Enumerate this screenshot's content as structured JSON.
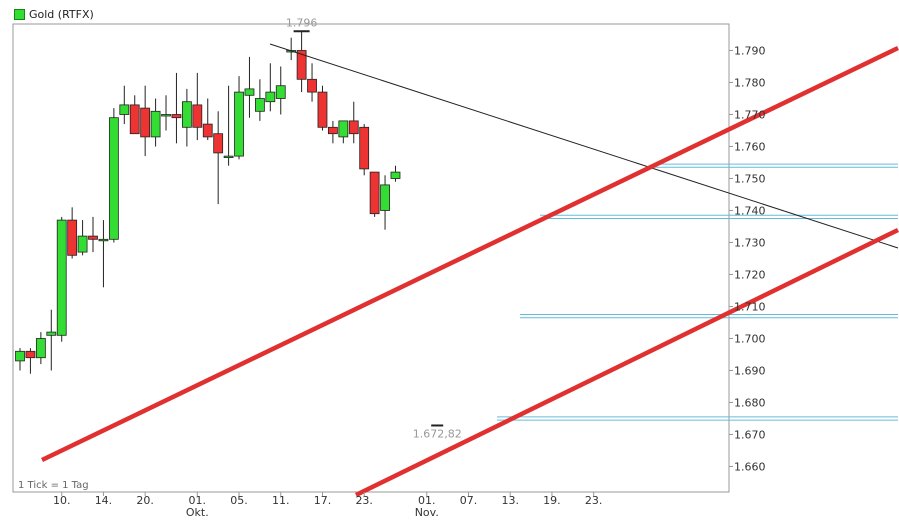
{
  "legend": {
    "label": "Gold (RTFX)",
    "color": "#33dd33"
  },
  "footnote": "1 Tick = 1 Tag",
  "chart_data": {
    "type": "candlestick",
    "title": "",
    "xlabel": "",
    "ylabel": "",
    "ylim": [
      1.655,
      1.803
    ],
    "yticks": [
      "1.660",
      "1.670",
      "1.680",
      "1.690",
      "1.700",
      "1.710",
      "1.720",
      "1.730",
      "1.740",
      "1.750",
      "1.760",
      "1.770",
      "1.780",
      "1.790"
    ],
    "yticks_values": [
      1.66,
      1.67,
      1.68,
      1.69,
      1.7,
      1.71,
      1.72,
      1.73,
      1.74,
      1.75,
      1.76,
      1.77,
      1.78,
      1.79
    ],
    "xticks": [
      {
        "i": 4,
        "label": "10."
      },
      {
        "i": 8,
        "label": "14."
      },
      {
        "i": 12,
        "label": "20."
      },
      {
        "i": 17,
        "label": "01.",
        "sub": "Okt."
      },
      {
        "i": 21,
        "label": "05."
      },
      {
        "i": 25,
        "label": "11."
      },
      {
        "i": 29,
        "label": "17."
      },
      {
        "i": 33,
        "label": "23."
      },
      {
        "i": 39,
        "label": "01.",
        "sub": "Nov."
      },
      {
        "i": 43,
        "label": "07."
      },
      {
        "i": 47,
        "label": "13."
      },
      {
        "i": 51,
        "label": "19."
      },
      {
        "i": 55,
        "label": "23."
      }
    ],
    "candles": [
      [
        1.693,
        1.697,
        1.69,
        1.696
      ],
      [
        1.696,
        1.697,
        1.689,
        1.694
      ],
      [
        1.694,
        1.702,
        1.692,
        1.7
      ],
      [
        1.701,
        1.709,
        1.69,
        1.702
      ],
      [
        1.701,
        1.738,
        1.699,
        1.737
      ],
      [
        1.737,
        1.741,
        1.725,
        1.726
      ],
      [
        1.727,
        1.737,
        1.726,
        1.732
      ],
      [
        1.732,
        1.738,
        1.727,
        1.731
      ],
      [
        1.731,
        1.737,
        1.716,
        1.731
      ],
      [
        1.731,
        1.772,
        1.73,
        1.769
      ],
      [
        1.77,
        1.779,
        1.767,
        1.773
      ],
      [
        1.773,
        1.776,
        1.764,
        1.764
      ],
      [
        1.772,
        1.779,
        1.757,
        1.763
      ],
      [
        1.763,
        1.775,
        1.76,
        1.771
      ],
      [
        1.77,
        1.776,
        1.765,
        1.77
      ],
      [
        1.77,
        1.783,
        1.761,
        1.769
      ],
      [
        1.766,
        1.778,
        1.76,
        1.774
      ],
      [
        1.773,
        1.783,
        1.762,
        1.766
      ],
      [
        1.767,
        1.775,
        1.762,
        1.763
      ],
      [
        1.764,
        1.771,
        1.742,
        1.758
      ],
      [
        1.757,
        1.779,
        1.754,
        1.757
      ],
      [
        1.757,
        1.782,
        1.756,
        1.777
      ],
      [
        1.776,
        1.788,
        1.769,
        1.778
      ],
      [
        1.771,
        1.781,
        1.768,
        1.775
      ],
      [
        1.774,
        1.786,
        1.771,
        1.777
      ],
      [
        1.775,
        1.785,
        1.77,
        1.779
      ],
      [
        1.79,
        1.794,
        1.787,
        1.79
      ],
      [
        1.79,
        1.796,
        1.777,
        1.781
      ],
      [
        1.781,
        1.786,
        1.774,
        1.777
      ],
      [
        1.777,
        1.779,
        1.765,
        1.766
      ],
      [
        1.766,
        1.768,
        1.761,
        1.764
      ],
      [
        1.763,
        1.768,
        1.761,
        1.768
      ],
      [
        1.768,
        1.774,
        1.761,
        1.764
      ],
      [
        1.766,
        1.767,
        1.751,
        1.753
      ],
      [
        1.752,
        1.752,
        1.738,
        1.739
      ],
      [
        1.74,
        1.751,
        1.734,
        1.748
      ],
      [
        1.75,
        1.754,
        1.749,
        1.752
      ]
    ],
    "annotations": [
      {
        "text": "1.796",
        "value": 1.796,
        "i": 27
      },
      {
        "text": "1.672,82",
        "value": 1.67282,
        "i": 40
      }
    ]
  }
}
